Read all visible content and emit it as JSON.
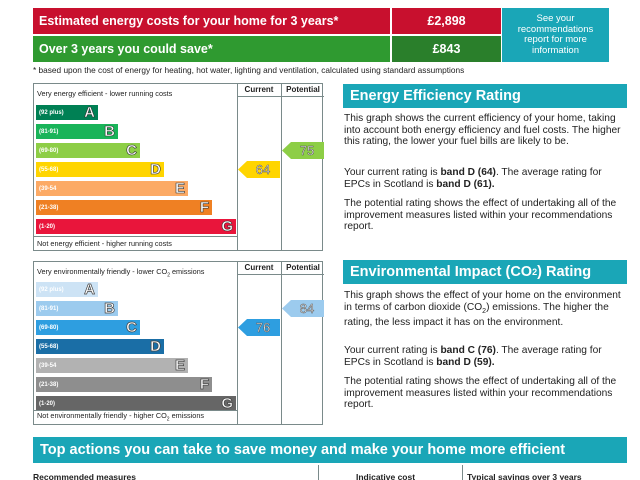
{
  "costs": {
    "estimated_label": "Estimated energy costs for your home for 3 years*",
    "estimated_value": "£2,898",
    "save_label": "Over 3 years you could save*",
    "save_value": "£843",
    "see_recommendations": "See your recommendations report for more information"
  },
  "footnote": "* based upon the cost of energy for heating, hot water, lighting and ventilation, calculated using standard assumptions",
  "efficiency_chart": {
    "top_caption": "Very energy efficient - lower running costs",
    "bottom_caption": "Not energy efficient - higher running costs",
    "current_header": "Current",
    "potential_header": "Potential",
    "bands": [
      {
        "range": "(92 plus)",
        "letter": "A",
        "color": "#008054"
      },
      {
        "range": "(81-91)",
        "letter": "B",
        "color": "#19b459"
      },
      {
        "range": "(69-80)",
        "letter": "C",
        "color": "#8dce46"
      },
      {
        "range": "(55-68)",
        "letter": "D",
        "color": "#ffd500"
      },
      {
        "range": "(39-54",
        "letter": "E",
        "color": "#fcaa65"
      },
      {
        "range": "(21-38)",
        "letter": "F",
        "color": "#ef8023"
      },
      {
        "range": "(1-20)",
        "letter": "G",
        "color": "#e9153b"
      }
    ],
    "current": {
      "value": "64",
      "band_index": 3,
      "color": "#ffd500"
    },
    "potential": {
      "value": "75",
      "band_index": 2,
      "color": "#8dce46"
    }
  },
  "environment_chart": {
    "top_caption_a": "Very environmentally friendly - lower CO",
    "top_caption_sub": "2",
    "top_caption_b": " emissions",
    "bottom_caption_a": "Not environmentally friendly - higher CO",
    "bottom_caption_sub": "2",
    "bottom_caption_b": " emissions",
    "current_header": "Current",
    "potential_header": "Potential",
    "bands": [
      {
        "range": "(92 plus)",
        "letter": "A",
        "color": "#cde3f5"
      },
      {
        "range": "(81-91)",
        "letter": "B",
        "color": "#9ccbee"
      },
      {
        "range": "(69-80)",
        "letter": "C",
        "color": "#2e9ee0"
      },
      {
        "range": "(55-68)",
        "letter": "D",
        "color": "#1a6ea6"
      },
      {
        "range": "(39-54",
        "letter": "E",
        "color": "#b2b2b2"
      },
      {
        "range": "(21-38)",
        "letter": "F",
        "color": "#8e8e8e"
      },
      {
        "range": "(1-20)",
        "letter": "G",
        "color": "#666666"
      }
    ],
    "current": {
      "value": "76",
      "band_index": 2,
      "color": "#2e9ee0"
    },
    "potential": {
      "value": "84",
      "band_index": 1,
      "color": "#9ccbee"
    }
  },
  "efficiency_panel": {
    "title": "Energy Efficiency Rating",
    "p1": "This graph shows the current efficiency of your home, taking into account both energy efficiency and fuel costs. The higher this rating, the lower your fuel bills are likely to be.",
    "p2_a": "Your current rating is ",
    "p2_b": "band D (64)",
    "p2_c": ". The average rating for EPCs in Scotland is ",
    "p2_d": "band D (61).",
    "p3": "The potential rating shows the effect of undertaking all of the improvement measures listed within your recommendations report."
  },
  "environment_panel": {
    "title_a": "Environmental Impact (CO",
    "title_sub": "2",
    "title_b": ") Rating",
    "p1_a": "This graph shows the effect of your home on the environment in terms of carbon dioxide (CO",
    "p1_sub": "2",
    "p1_b": ") emissions. The higher the rating, the less impact it has on the environment.",
    "p2_a": "Your current rating is ",
    "p2_b": "band C (76)",
    "p2_c": ". The average rating for EPCs in Scotland is ",
    "p2_d": "band D (59).",
    "p3": "The potential rating shows the effect of undertaking all of the improvement measures listed within your recommendations report."
  },
  "actions": {
    "title": "Top actions you can take to save money and make your home more efficient",
    "col_measures": "Recommended measures",
    "col_cost": "Indicative cost",
    "col_savings": "Typical savings over 3 years"
  }
}
